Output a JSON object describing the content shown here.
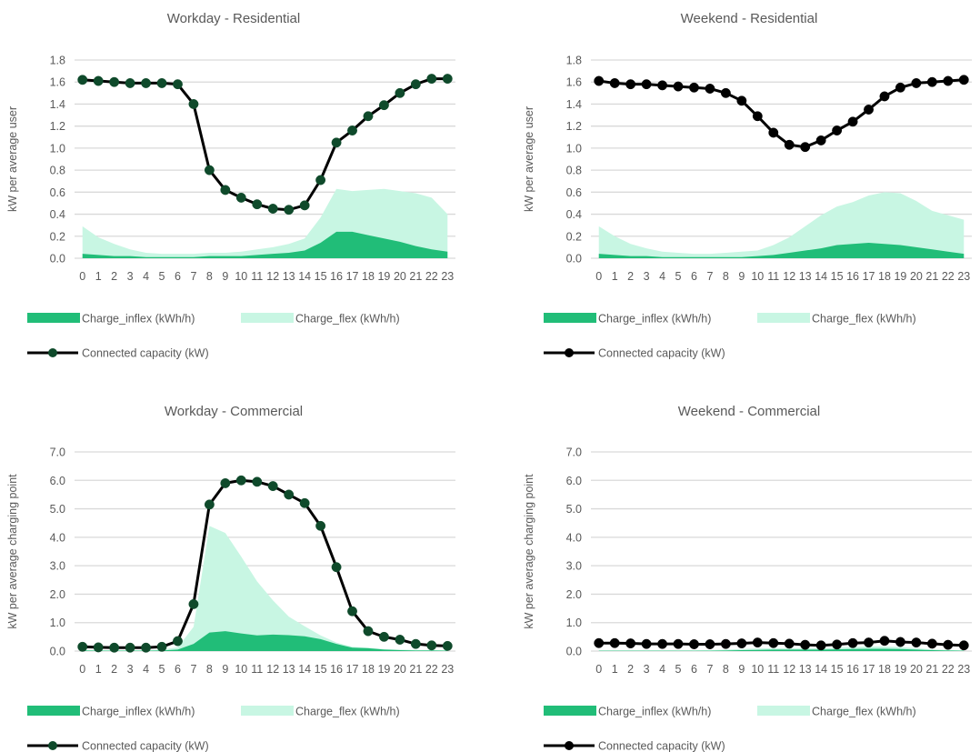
{
  "colors": {
    "inflex": "#21BD78",
    "flex": "#C8F6E3",
    "line": "#000000",
    "marker_dark_green": "#0F4A2B",
    "marker_black": "#000000",
    "grid": "#D9D9D9",
    "text": "#595959"
  },
  "chart_data": [
    {
      "type": "area",
      "title": "Workday - Residential",
      "ylabel": "kW per average user",
      "xlabel": "",
      "ylim": [
        0,
        1.8
      ],
      "yticks": [
        "0.0",
        "0.2",
        "0.4",
        "0.6",
        "0.8",
        "1.0",
        "1.2",
        "1.4",
        "1.6",
        "1.8"
      ],
      "grid": true,
      "legend_position": "bottom",
      "categories": [
        "0",
        "1",
        "2",
        "3",
        "4",
        "5",
        "6",
        "7",
        "8",
        "9",
        "10",
        "11",
        "12",
        "13",
        "14",
        "15",
        "16",
        "17",
        "18",
        "19",
        "20",
        "21",
        "22",
        "23"
      ],
      "series": [
        {
          "name": "Charge_inflex (kWh/h)",
          "kind": "area",
          "values": [
            0.04,
            0.03,
            0.02,
            0.02,
            0.01,
            0.01,
            0.01,
            0.01,
            0.02,
            0.02,
            0.02,
            0.03,
            0.04,
            0.05,
            0.07,
            0.14,
            0.24,
            0.24,
            0.21,
            0.18,
            0.15,
            0.11,
            0.08,
            0.06
          ]
        },
        {
          "name": "Charge_flex (kWh/h)",
          "kind": "area",
          "values": [
            0.25,
            0.16,
            0.11,
            0.06,
            0.04,
            0.03,
            0.03,
            0.03,
            0.03,
            0.03,
            0.04,
            0.05,
            0.06,
            0.08,
            0.11,
            0.23,
            0.39,
            0.37,
            0.41,
            0.45,
            0.46,
            0.48,
            0.47,
            0.34
          ]
        },
        {
          "name": "Connected capacity (kW)",
          "kind": "line",
          "marker": "dark_green",
          "values": [
            1.62,
            1.61,
            1.6,
            1.59,
            1.59,
            1.59,
            1.58,
            1.4,
            0.8,
            0.62,
            0.55,
            0.49,
            0.45,
            0.44,
            0.48,
            0.71,
            1.05,
            1.16,
            1.29,
            1.39,
            1.5,
            1.58,
            1.63,
            1.63
          ]
        }
      ]
    },
    {
      "type": "area",
      "title": "Weekend - Residential",
      "ylabel": "kW per average user",
      "xlabel": "",
      "ylim": [
        0,
        1.8
      ],
      "yticks": [
        "0.0",
        "0.2",
        "0.4",
        "0.6",
        "0.8",
        "1.0",
        "1.2",
        "1.4",
        "1.6",
        "1.8"
      ],
      "grid": true,
      "legend_position": "bottom",
      "categories": [
        "0",
        "1",
        "2",
        "3",
        "4",
        "5",
        "6",
        "7",
        "8",
        "9",
        "10",
        "11",
        "12",
        "13",
        "14",
        "15",
        "16",
        "17",
        "18",
        "19",
        "20",
        "21",
        "22",
        "23"
      ],
      "series": [
        {
          "name": "Charge_inflex (kWh/h)",
          "kind": "area",
          "values": [
            0.04,
            0.03,
            0.02,
            0.02,
            0.01,
            0.01,
            0.01,
            0.01,
            0.01,
            0.01,
            0.02,
            0.03,
            0.05,
            0.07,
            0.09,
            0.12,
            0.13,
            0.14,
            0.13,
            0.12,
            0.1,
            0.08,
            0.06,
            0.04
          ]
        },
        {
          "name": "Charge_flex (kWh/h)",
          "kind": "area",
          "values": [
            0.25,
            0.17,
            0.11,
            0.07,
            0.05,
            0.04,
            0.03,
            0.03,
            0.04,
            0.05,
            0.05,
            0.09,
            0.14,
            0.22,
            0.3,
            0.35,
            0.38,
            0.43,
            0.47,
            0.47,
            0.42,
            0.35,
            0.33,
            0.31
          ]
        },
        {
          "name": "Connected capacity (kW)",
          "kind": "line",
          "marker": "black",
          "values": [
            1.61,
            1.59,
            1.58,
            1.58,
            1.57,
            1.56,
            1.55,
            1.54,
            1.5,
            1.43,
            1.29,
            1.14,
            1.03,
            1.01,
            1.07,
            1.16,
            1.24,
            1.35,
            1.47,
            1.55,
            1.59,
            1.6,
            1.61,
            1.62
          ]
        }
      ]
    },
    {
      "type": "area",
      "title": "Workday - Commercial",
      "ylabel": "kW per average charging point",
      "xlabel": "",
      "ylim": [
        0,
        7.0
      ],
      "yticks": [
        "0.0",
        "1.0",
        "2.0",
        "3.0",
        "4.0",
        "5.0",
        "6.0",
        "7.0"
      ],
      "grid": true,
      "legend_position": "bottom",
      "categories": [
        "0",
        "1",
        "2",
        "3",
        "4",
        "5",
        "6",
        "7",
        "8",
        "9",
        "10",
        "11",
        "12",
        "13",
        "14",
        "15",
        "16",
        "17",
        "18",
        "19",
        "20",
        "21",
        "22",
        "23"
      ],
      "series": [
        {
          "name": "Charge_inflex (kWh/h)",
          "kind": "area",
          "values": [
            0.02,
            0.01,
            0.01,
            0.01,
            0.01,
            0.02,
            0.05,
            0.25,
            0.65,
            0.7,
            0.62,
            0.55,
            0.58,
            0.56,
            0.52,
            0.42,
            0.25,
            0.12,
            0.1,
            0.05,
            0.03,
            0.02,
            0.02,
            0.01
          ]
        },
        {
          "name": "Charge_flex (kWh/h)",
          "kind": "area",
          "values": [
            0.02,
            0.02,
            0.02,
            0.02,
            0.02,
            0.03,
            0.08,
            0.6,
            3.75,
            3.45,
            2.7,
            1.9,
            1.2,
            0.65,
            0.35,
            0.13,
            0.05,
            0.03,
            0.02,
            0.02,
            0.02,
            0.02,
            0.02,
            0.02
          ]
        },
        {
          "name": "Connected capacity (kW)",
          "kind": "line",
          "marker": "dark_green",
          "values": [
            0.15,
            0.13,
            0.12,
            0.12,
            0.12,
            0.15,
            0.35,
            1.65,
            5.15,
            5.9,
            6.0,
            5.95,
            5.8,
            5.5,
            5.2,
            4.4,
            2.95,
            1.4,
            0.7,
            0.5,
            0.4,
            0.25,
            0.2,
            0.18
          ]
        }
      ]
    },
    {
      "type": "area",
      "title": "Weekend - Commercial",
      "ylabel": "kW per average charging point",
      "xlabel": "",
      "ylim": [
        0,
        7.0
      ],
      "yticks": [
        "0.0",
        "1.0",
        "2.0",
        "3.0",
        "4.0",
        "5.0",
        "6.0",
        "7.0"
      ],
      "grid": true,
      "legend_position": "bottom",
      "categories": [
        "0",
        "1",
        "2",
        "3",
        "4",
        "5",
        "6",
        "7",
        "8",
        "9",
        "10",
        "11",
        "12",
        "13",
        "14",
        "15",
        "16",
        "17",
        "18",
        "19",
        "20",
        "21",
        "22",
        "23"
      ],
      "series": [
        {
          "name": "Charge_inflex (kWh/h)",
          "kind": "area",
          "values": [
            0.01,
            0.01,
            0.01,
            0.01,
            0.01,
            0.01,
            0.01,
            0.01,
            0.02,
            0.03,
            0.04,
            0.05,
            0.05,
            0.05,
            0.05,
            0.06,
            0.07,
            0.08,
            0.08,
            0.07,
            0.05,
            0.03,
            0.02,
            0.01
          ]
        },
        {
          "name": "Charge_flex (kWh/h)",
          "kind": "area",
          "values": [
            0.01,
            0.01,
            0.01,
            0.01,
            0.01,
            0.01,
            0.01,
            0.02,
            0.03,
            0.04,
            0.05,
            0.05,
            0.05,
            0.05,
            0.05,
            0.06,
            0.07,
            0.08,
            0.08,
            0.07,
            0.05,
            0.03,
            0.02,
            0.01
          ]
        },
        {
          "name": "Connected capacity (kW)",
          "kind": "line",
          "marker": "black",
          "values": [
            0.28,
            0.28,
            0.27,
            0.25,
            0.25,
            0.25,
            0.24,
            0.24,
            0.25,
            0.27,
            0.3,
            0.28,
            0.26,
            0.22,
            0.2,
            0.23,
            0.28,
            0.3,
            0.36,
            0.32,
            0.3,
            0.26,
            0.22,
            0.2
          ]
        }
      ]
    }
  ]
}
